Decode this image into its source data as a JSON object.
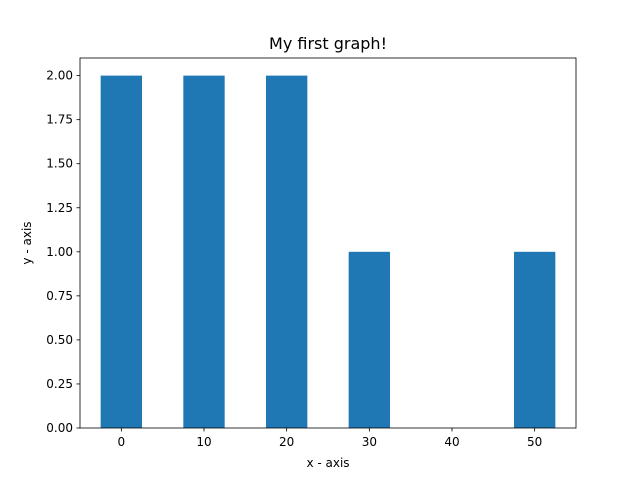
{
  "chart_data": {
    "type": "bar",
    "title": "My first graph!",
    "xlabel": "x - axis",
    "ylabel": "y - axis",
    "x": [
      0,
      10,
      20,
      30,
      40,
      50
    ],
    "values": [
      2,
      2,
      2,
      1,
      0,
      1
    ],
    "bar_color": "#1f77b4",
    "xlim": [
      -5,
      55
    ],
    "ylim": [
      0,
      2.1
    ],
    "xticks": [
      0,
      10,
      20,
      30,
      40,
      50
    ],
    "xtick_labels": [
      "0",
      "10",
      "20",
      "30",
      "40",
      "50"
    ],
    "yticks": [
      0,
      0.25,
      0.5,
      0.75,
      1.0,
      1.25,
      1.5,
      1.75,
      2.0
    ],
    "ytick_labels": [
      "0.00",
      "0.25",
      "0.50",
      "0.75",
      "1.00",
      "1.25",
      "1.50",
      "1.75",
      "2.00"
    ],
    "bar_width": 5,
    "grid": false,
    "legend": "none"
  }
}
